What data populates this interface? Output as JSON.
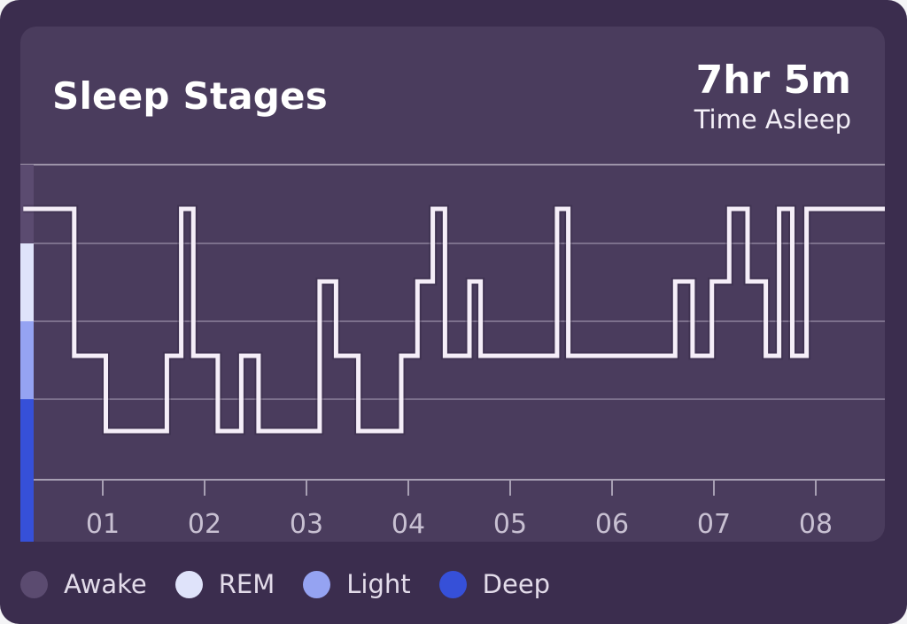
{
  "header": {
    "title": "Sleep Stages",
    "time_asleep_value": "7hr 5m",
    "time_asleep_label": "Time Asleep"
  },
  "colors": {
    "background": "#3b2d4e",
    "card": "#4a3c5d",
    "line": "#f5eef8",
    "gridline": "#8d829c",
    "awake": "#5b4b70",
    "rem": "#dfe3fa",
    "light": "#95a3f2",
    "deep": "#3650d8"
  },
  "legend": [
    {
      "label": "Awake",
      "color": "#5b4b70"
    },
    {
      "label": "REM",
      "color": "#dfe3fa"
    },
    {
      "label": "Light",
      "color": "#95a3f2"
    },
    {
      "label": "Deep",
      "color": "#3650d8"
    }
  ],
  "chart_data": {
    "type": "line",
    "step": true,
    "xlabel": "",
    "ylabel": "",
    "x_ticks": [
      "01",
      "02",
      "03",
      "04",
      "05",
      "06",
      "07",
      "08"
    ],
    "xlim": [
      0.2,
      8.7
    ],
    "stages": [
      "Awake",
      "REM",
      "Light",
      "Deep"
    ],
    "levels": [
      {
        "stage": "Awake",
        "level": 3
      },
      {
        "stage": "REM",
        "level": 2
      },
      {
        "stage": "Light",
        "level": 1
      },
      {
        "stage": "Deep",
        "level": 0
      }
    ],
    "grid": true,
    "legend": "bottom-left",
    "series": [
      {
        "points": [
          {
            "x": 0.22,
            "y": 3
          },
          {
            "x": 0.72,
            "y": 1
          },
          {
            "x": 1.03,
            "y": 0
          },
          {
            "x": 1.63,
            "y": 1
          },
          {
            "x": 1.77,
            "y": 3
          },
          {
            "x": 1.89,
            "y": 1
          },
          {
            "x": 2.13,
            "y": 0
          },
          {
            "x": 2.36,
            "y": 1
          },
          {
            "x": 2.53,
            "y": 0
          },
          {
            "x": 3.13,
            "y": 2
          },
          {
            "x": 3.29,
            "y": 1
          },
          {
            "x": 3.51,
            "y": 0
          },
          {
            "x": 3.93,
            "y": 1
          },
          {
            "x": 4.09,
            "y": 2
          },
          {
            "x": 4.24,
            "y": 3
          },
          {
            "x": 4.36,
            "y": 1
          },
          {
            "x": 4.6,
            "y": 2
          },
          {
            "x": 4.71,
            "y": 1
          },
          {
            "x": 5.46,
            "y": 3
          },
          {
            "x": 5.57,
            "y": 1
          },
          {
            "x": 6.62,
            "y": 2
          },
          {
            "x": 6.79,
            "y": 1
          },
          {
            "x": 6.98,
            "y": 2
          },
          {
            "x": 7.15,
            "y": 3
          },
          {
            "x": 7.33,
            "y": 2
          },
          {
            "x": 7.51,
            "y": 1
          },
          {
            "x": 7.64,
            "y": 3
          },
          {
            "x": 7.77,
            "y": 1
          },
          {
            "x": 7.91,
            "y": 3
          },
          {
            "x": 8.7,
            "y": 3
          }
        ]
      }
    ]
  }
}
